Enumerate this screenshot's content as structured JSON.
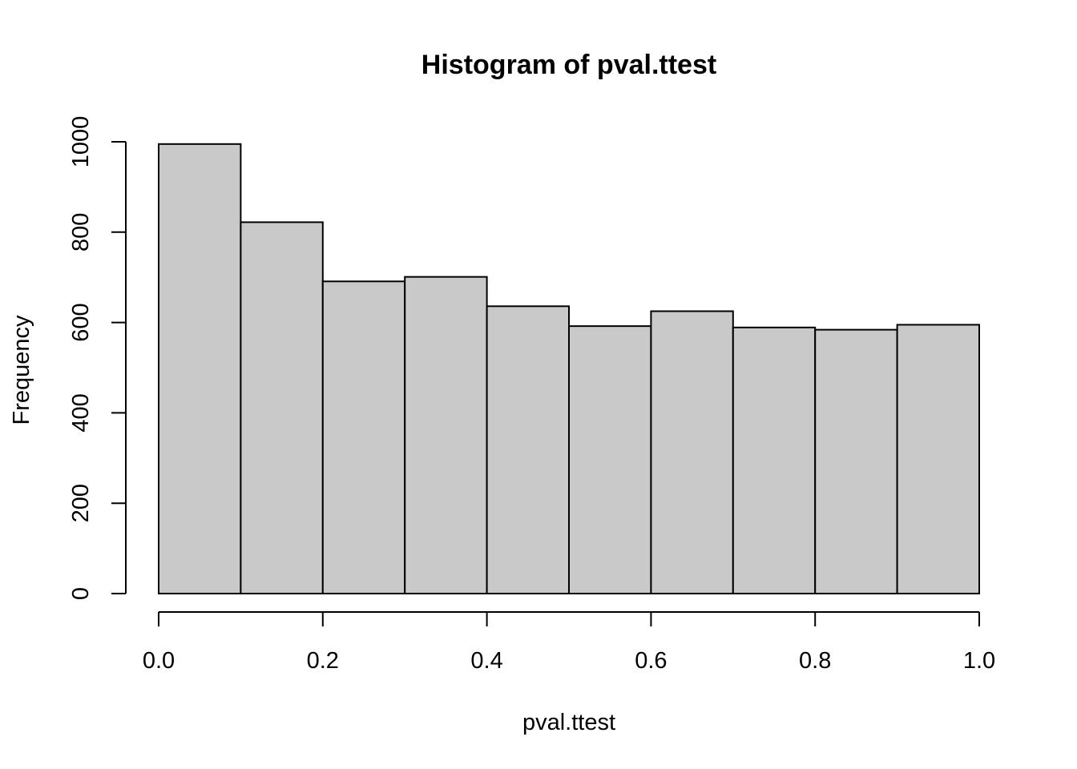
{
  "chart_data": {
    "type": "bar",
    "subtype": "histogram",
    "title": "Histogram of pval.ttest",
    "xlabel": "pval.ttest",
    "ylabel": "Frequency",
    "bins": [
      {
        "x0": 0.0,
        "x1": 0.1,
        "count": 995
      },
      {
        "x0": 0.1,
        "x1": 0.2,
        "count": 822
      },
      {
        "x0": 0.2,
        "x1": 0.3,
        "count": 691
      },
      {
        "x0": 0.3,
        "x1": 0.4,
        "count": 701
      },
      {
        "x0": 0.4,
        "x1": 0.5,
        "count": 636
      },
      {
        "x0": 0.5,
        "x1": 0.6,
        "count": 592
      },
      {
        "x0": 0.6,
        "x1": 0.7,
        "count": 625
      },
      {
        "x0": 0.7,
        "x1": 0.8,
        "count": 589
      },
      {
        "x0": 0.8,
        "x1": 0.9,
        "count": 584
      },
      {
        "x0": 0.9,
        "x1": 1.0,
        "count": 595
      }
    ],
    "xlim": [
      0,
      1
    ],
    "ylim": [
      0,
      1000
    ],
    "xticks": [
      "0.0",
      "0.2",
      "0.4",
      "0.6",
      "0.8",
      "1.0"
    ],
    "yticks": [
      "0",
      "200",
      "400",
      "600",
      "800",
      "1000"
    ],
    "grid": false,
    "legend": "none",
    "bar_fill": "#c9c9c9",
    "bar_stroke": "#000000"
  }
}
